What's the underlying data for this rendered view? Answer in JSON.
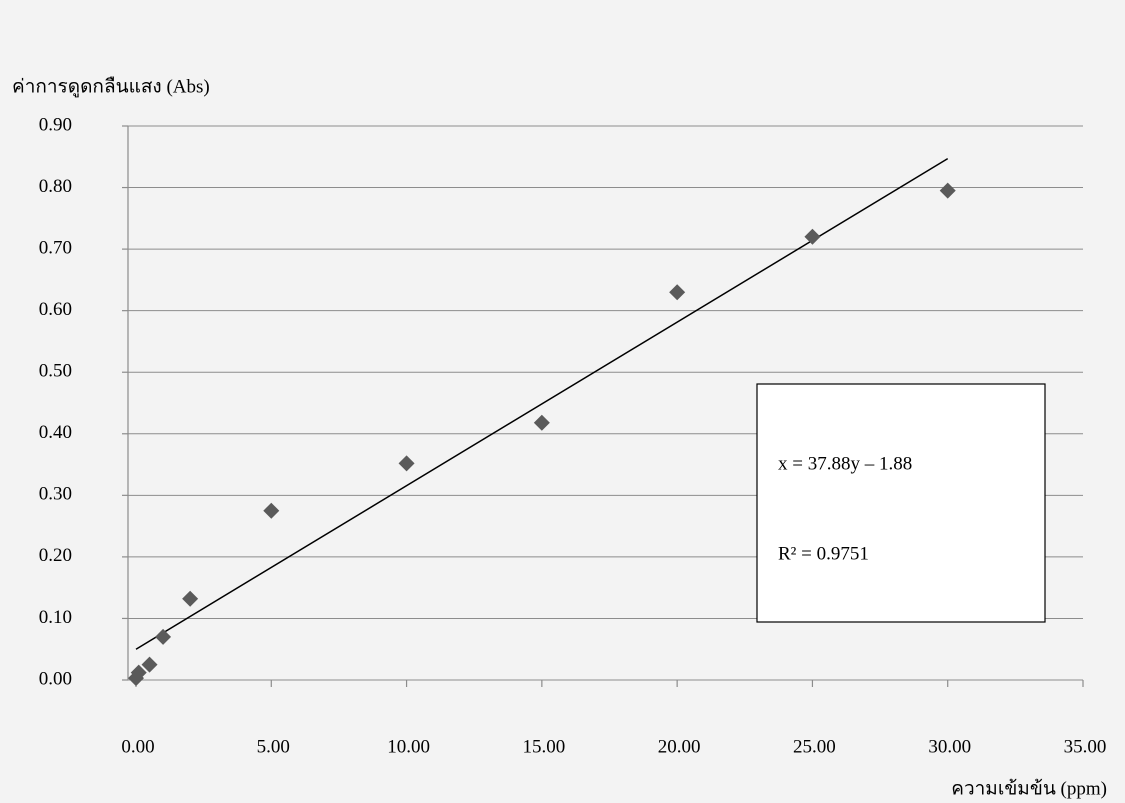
{
  "chart_data": {
    "type": "scatter",
    "y_label": "ค่าการดูดกลืนแสง (Abs)",
    "x_label": "ความเข้มข้น (ppm)",
    "x": [
      0,
      0.1,
      0.5,
      1,
      2,
      5,
      10,
      15,
      20,
      25,
      30
    ],
    "values": [
      0.003,
      0.012,
      0.025,
      0.07,
      0.132,
      0.275,
      0.352,
      0.418,
      0.63,
      0.72,
      0.795
    ],
    "color": "#5a5a5a",
    "trendline": {
      "x": [
        0,
        30
      ],
      "y": [
        0.05,
        0.847
      ],
      "color": "#000000"
    },
    "annotations": [
      "x = 37.88y – 1.88",
      "R² = 0.9751"
    ],
    "xlim": [
      0,
      35
    ],
    "xticks": [
      {
        "value": 0,
        "label": "0.00"
      },
      {
        "value": 5,
        "label": "5.00"
      },
      {
        "value": 10,
        "label": "10.00"
      },
      {
        "value": 15,
        "label": "15.00"
      },
      {
        "value": 20,
        "label": "20.00"
      },
      {
        "value": 25,
        "label": "25.00"
      },
      {
        "value": 30,
        "label": "30.00"
      },
      {
        "value": 35,
        "label": "35.00"
      }
    ],
    "ylim": [
      0,
      0.9
    ],
    "yticks": [
      {
        "value": 0,
        "label": "0.00"
      },
      {
        "value": 0.1,
        "label": "0.10"
      },
      {
        "value": 0.2,
        "label": "0.20"
      },
      {
        "value": 0.3,
        "label": "0.30"
      },
      {
        "value": 0.4,
        "label": "0.40"
      },
      {
        "value": 0.5,
        "label": "0.50"
      },
      {
        "value": 0.6,
        "label": "0.60"
      },
      {
        "value": 0.7,
        "label": "0.70"
      },
      {
        "value": 0.8,
        "label": "0.80"
      },
      {
        "value": 0.9,
        "label": "0.90"
      }
    ],
    "grid": true
  }
}
